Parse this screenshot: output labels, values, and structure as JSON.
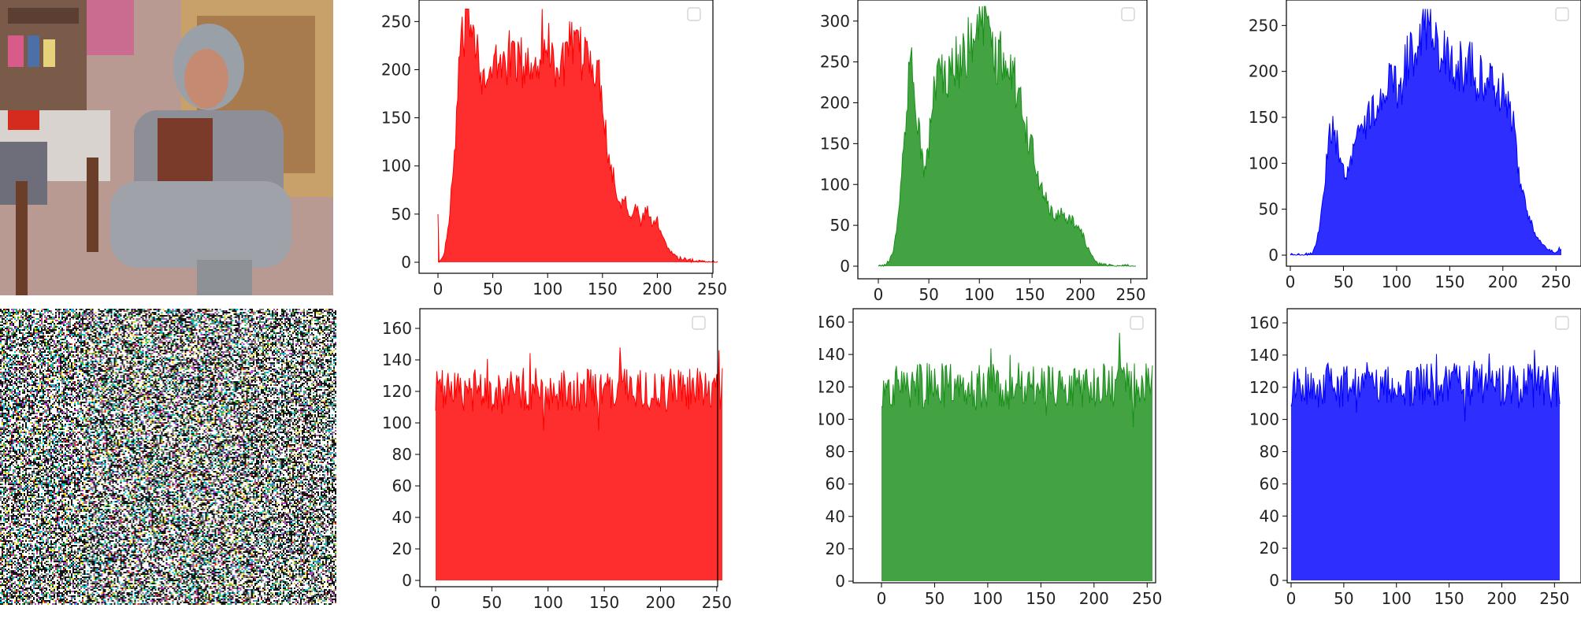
{
  "images": [
    {
      "name": "original-photo",
      "description_icon": "woman-portrait-photo"
    },
    {
      "name": "encrypted-noise-image",
      "description_icon": "noise-image"
    }
  ],
  "chart_data": [
    {
      "type": "area",
      "name": "original-red-histogram",
      "color": "#ff0000",
      "xlim": [
        0,
        255
      ],
      "ylim": [
        0,
        265
      ],
      "xticks": [
        0,
        50,
        100,
        150,
        200,
        250
      ],
      "yticks": [
        0,
        50,
        100,
        150,
        200,
        250
      ],
      "legend": "top-right (empty)",
      "grid": false,
      "profile": [
        [
          0,
          58
        ],
        [
          1,
          0
        ],
        [
          5,
          5
        ],
        [
          10,
          40
        ],
        [
          15,
          110
        ],
        [
          20,
          215
        ],
        [
          25,
          240
        ],
        [
          30,
          260
        ],
        [
          35,
          235
        ],
        [
          40,
          200
        ],
        [
          45,
          180
        ],
        [
          50,
          200
        ],
        [
          60,
          210
        ],
        [
          70,
          215
        ],
        [
          80,
          200
        ],
        [
          90,
          210
        ],
        [
          95,
          235
        ],
        [
          100,
          225
        ],
        [
          110,
          200
        ],
        [
          120,
          220
        ],
        [
          130,
          215
        ],
        [
          140,
          215
        ],
        [
          145,
          195
        ],
        [
          150,
          180
        ],
        [
          155,
          110
        ],
        [
          160,
          90
        ],
        [
          165,
          60
        ],
        [
          170,
          70
        ],
        [
          175,
          50
        ],
        [
          180,
          60
        ],
        [
          185,
          40
        ],
        [
          190,
          55
        ],
        [
          195,
          40
        ],
        [
          200,
          42
        ],
        [
          205,
          28
        ],
        [
          210,
          14
        ],
        [
          215,
          8
        ],
        [
          220,
          4
        ],
        [
          230,
          2
        ],
        [
          240,
          1
        ],
        [
          255,
          0
        ]
      ]
    },
    {
      "type": "area",
      "name": "original-green-histogram",
      "color": "#1a8f1a",
      "xlim": [
        0,
        255
      ],
      "ylim": [
        0,
        320
      ],
      "xticks": [
        0,
        50,
        100,
        150,
        200,
        250
      ],
      "yticks": [
        0,
        50,
        100,
        150,
        200,
        250,
        300
      ],
      "legend": "top-right (empty)",
      "grid": false,
      "profile": [
        [
          0,
          0
        ],
        [
          5,
          1
        ],
        [
          10,
          5
        ],
        [
          15,
          20
        ],
        [
          20,
          60
        ],
        [
          25,
          150
        ],
        [
          30,
          240
        ],
        [
          33,
          280
        ],
        [
          36,
          220
        ],
        [
          40,
          160
        ],
        [
          45,
          120
        ],
        [
          50,
          150
        ],
        [
          55,
          210
        ],
        [
          60,
          250
        ],
        [
          65,
          220
        ],
        [
          70,
          240
        ],
        [
          80,
          250
        ],
        [
          90,
          270
        ],
        [
          95,
          290
        ],
        [
          100,
          310
        ],
        [
          105,
          295
        ],
        [
          110,
          280
        ],
        [
          115,
          250
        ],
        [
          120,
          260
        ],
        [
          125,
          240
        ],
        [
          130,
          250
        ],
        [
          135,
          225
        ],
        [
          140,
          210
        ],
        [
          145,
          180
        ],
        [
          150,
          150
        ],
        [
          155,
          130
        ],
        [
          160,
          100
        ],
        [
          165,
          85
        ],
        [
          170,
          70
        ],
        [
          175,
          60
        ],
        [
          180,
          70
        ],
        [
          185,
          55
        ],
        [
          190,
          60
        ],
        [
          195,
          50
        ],
        [
          200,
          45
        ],
        [
          205,
          30
        ],
        [
          210,
          15
        ],
        [
          215,
          5
        ],
        [
          220,
          2
        ],
        [
          230,
          1
        ],
        [
          255,
          0
        ]
      ]
    },
    {
      "type": "area",
      "name": "original-blue-histogram",
      "color": "#0000ff",
      "xlim": [
        0,
        255
      ],
      "ylim": [
        0,
        270
      ],
      "xticks": [
        0,
        50,
        100,
        150,
        200,
        250
      ],
      "yticks": [
        0,
        50,
        100,
        150,
        200,
        250
      ],
      "legend": "top-right (empty)",
      "grid": false,
      "profile": [
        [
          0,
          0
        ],
        [
          10,
          0
        ],
        [
          20,
          2
        ],
        [
          25,
          15
        ],
        [
          30,
          50
        ],
        [
          35,
          110
        ],
        [
          38,
          140
        ],
        [
          42,
          130
        ],
        [
          48,
          100
        ],
        [
          52,
          90
        ],
        [
          56,
          100
        ],
        [
          60,
          120
        ],
        [
          65,
          130
        ],
        [
          75,
          150
        ],
        [
          80,
          160
        ],
        [
          90,
          170
        ],
        [
          95,
          200
        ],
        [
          100,
          180
        ],
        [
          105,
          190
        ],
        [
          110,
          210
        ],
        [
          115,
          220
        ],
        [
          120,
          235
        ],
        [
          125,
          250
        ],
        [
          130,
          265
        ],
        [
          135,
          240
        ],
        [
          140,
          225
        ],
        [
          145,
          215
        ],
        [
          150,
          210
        ],
        [
          155,
          200
        ],
        [
          160,
          205
        ],
        [
          165,
          195
        ],
        [
          170,
          210
        ],
        [
          175,
          190
        ],
        [
          180,
          200
        ],
        [
          185,
          180
        ],
        [
          190,
          200
        ],
        [
          195,
          175
        ],
        [
          200,
          190
        ],
        [
          205,
          160
        ],
        [
          210,
          140
        ],
        [
          215,
          90
        ],
        [
          220,
          60
        ],
        [
          225,
          40
        ],
        [
          230,
          25
        ],
        [
          235,
          15
        ],
        [
          240,
          10
        ],
        [
          245,
          5
        ],
        [
          250,
          3
        ],
        [
          253,
          8
        ],
        [
          255,
          5
        ]
      ]
    },
    {
      "type": "area",
      "name": "encrypted-red-histogram",
      "color": "#ff0000",
      "xlim": [
        0,
        255
      ],
      "ylim": [
        0,
        165
      ],
      "xticks": [
        0,
        50,
        100,
        150,
        200,
        250
      ],
      "yticks": [
        0,
        20,
        40,
        60,
        80,
        100,
        120,
        140,
        160
      ],
      "legend": "top-right (empty)",
      "grid": false,
      "mean": 121,
      "spread": 14
    },
    {
      "type": "area",
      "name": "encrypted-green-histogram",
      "color": "#1a8f1a",
      "xlim": [
        0,
        255
      ],
      "ylim": [
        0,
        160
      ],
      "xticks": [
        0,
        50,
        100,
        150,
        200,
        250
      ],
      "yticks": [
        0,
        20,
        40,
        60,
        80,
        100,
        120,
        140,
        160
      ],
      "legend": "top-right (empty)",
      "grid": false,
      "mean": 121,
      "spread": 14
    },
    {
      "type": "area",
      "name": "encrypted-blue-histogram",
      "color": "#0000ff",
      "xlim": [
        0,
        255
      ],
      "ylim": [
        0,
        160
      ],
      "xticks": [
        0,
        50,
        100,
        150,
        200,
        250
      ],
      "yticks": [
        0,
        20,
        40,
        60,
        80,
        100,
        120,
        140,
        160
      ],
      "legend": "top-right (empty)",
      "grid": false,
      "mean": 121,
      "spread": 14
    }
  ]
}
